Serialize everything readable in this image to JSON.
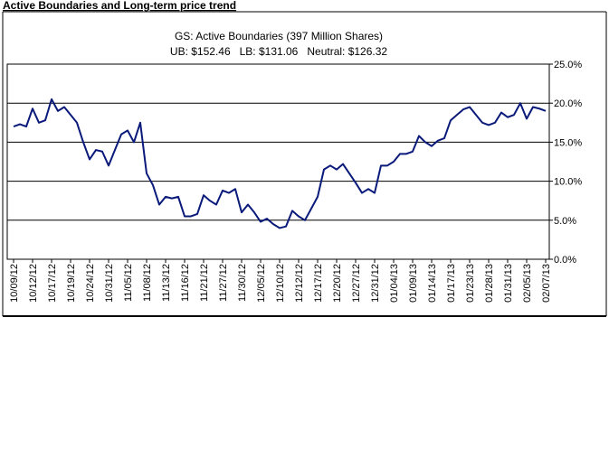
{
  "header": {
    "title": "Active Boundaries and Long-term price trend"
  },
  "chart_data": {
    "type": "line",
    "title": "GS: Active Boundaries (397 Million Shares)",
    "subtitle": "UB: $152.46   LB: $131.06   Neutral: $126.32",
    "categories": [
      "10/09/12",
      null,
      null,
      "10/12/12",
      null,
      null,
      "10/17/12",
      null,
      null,
      "10/19/12",
      null,
      null,
      "10/24/12",
      null,
      null,
      "10/31/12",
      null,
      null,
      "11/05/12",
      null,
      null,
      "11/08/12",
      null,
      null,
      "11/13/12",
      null,
      null,
      "11/16/12",
      null,
      null,
      "11/21/12",
      null,
      null,
      "11/27/12",
      null,
      null,
      "11/30/12",
      null,
      null,
      "12/05/12",
      null,
      null,
      "12/10/12",
      null,
      null,
      "12/12/12",
      null,
      null,
      "12/17/12",
      null,
      null,
      "12/20/12",
      null,
      null,
      "12/27/12",
      null,
      null,
      "12/31/12",
      null,
      null,
      "01/04/13",
      null,
      null,
      "01/09/13",
      null,
      null,
      "01/14/13",
      null,
      null,
      "01/17/13",
      null,
      null,
      "01/23/13",
      null,
      null,
      "01/28/13",
      null,
      null,
      "01/31/13",
      null,
      null,
      "02/05/13",
      null,
      null,
      "02/07/13"
    ],
    "series": [
      {
        "color": "#0a1a7a",
        "values": [
          17.0,
          17.3,
          17.0,
          19.3,
          17.5,
          17.8,
          20.5,
          19.0,
          19.5,
          18.5,
          17.5,
          15.0,
          12.8,
          14.0,
          13.8,
          12.0,
          14.0,
          16.0,
          16.5,
          15.0,
          17.5,
          11.0,
          9.5,
          7.0,
          8.0,
          7.8,
          8.0,
          5.5,
          5.5,
          5.8,
          8.2,
          7.5,
          7.0,
          8.8,
          8.5,
          9.0,
          6.0,
          7.0,
          6.0,
          4.8,
          5.2,
          4.5,
          4.0,
          4.2,
          6.2,
          5.5,
          5.0,
          6.5,
          8.0,
          11.5,
          12.0,
          11.5,
          12.2,
          11.0,
          9.8,
          8.5,
          9.0,
          8.5,
          12.0,
          12.0,
          12.5,
          13.5,
          13.5,
          13.8,
          15.8,
          15.0,
          14.5,
          15.2,
          15.5,
          17.8,
          18.5,
          19.2,
          19.5,
          18.5,
          17.5,
          17.2,
          17.5,
          18.8,
          18.2,
          18.5,
          20.0,
          18.0,
          19.5,
          19.3,
          19.0
        ]
      }
    ],
    "ylim": [
      0,
      25
    ],
    "yticks": [
      {
        "value": 0,
        "label": "0.0%"
      },
      {
        "value": 5,
        "label": "5.0%"
      },
      {
        "value": 10,
        "label": "10.0%"
      },
      {
        "value": 15,
        "label": "15.0%"
      },
      {
        "value": 20,
        "label": "20.0%"
      },
      {
        "value": 25,
        "label": "25.0%"
      }
    ],
    "grid": true
  }
}
